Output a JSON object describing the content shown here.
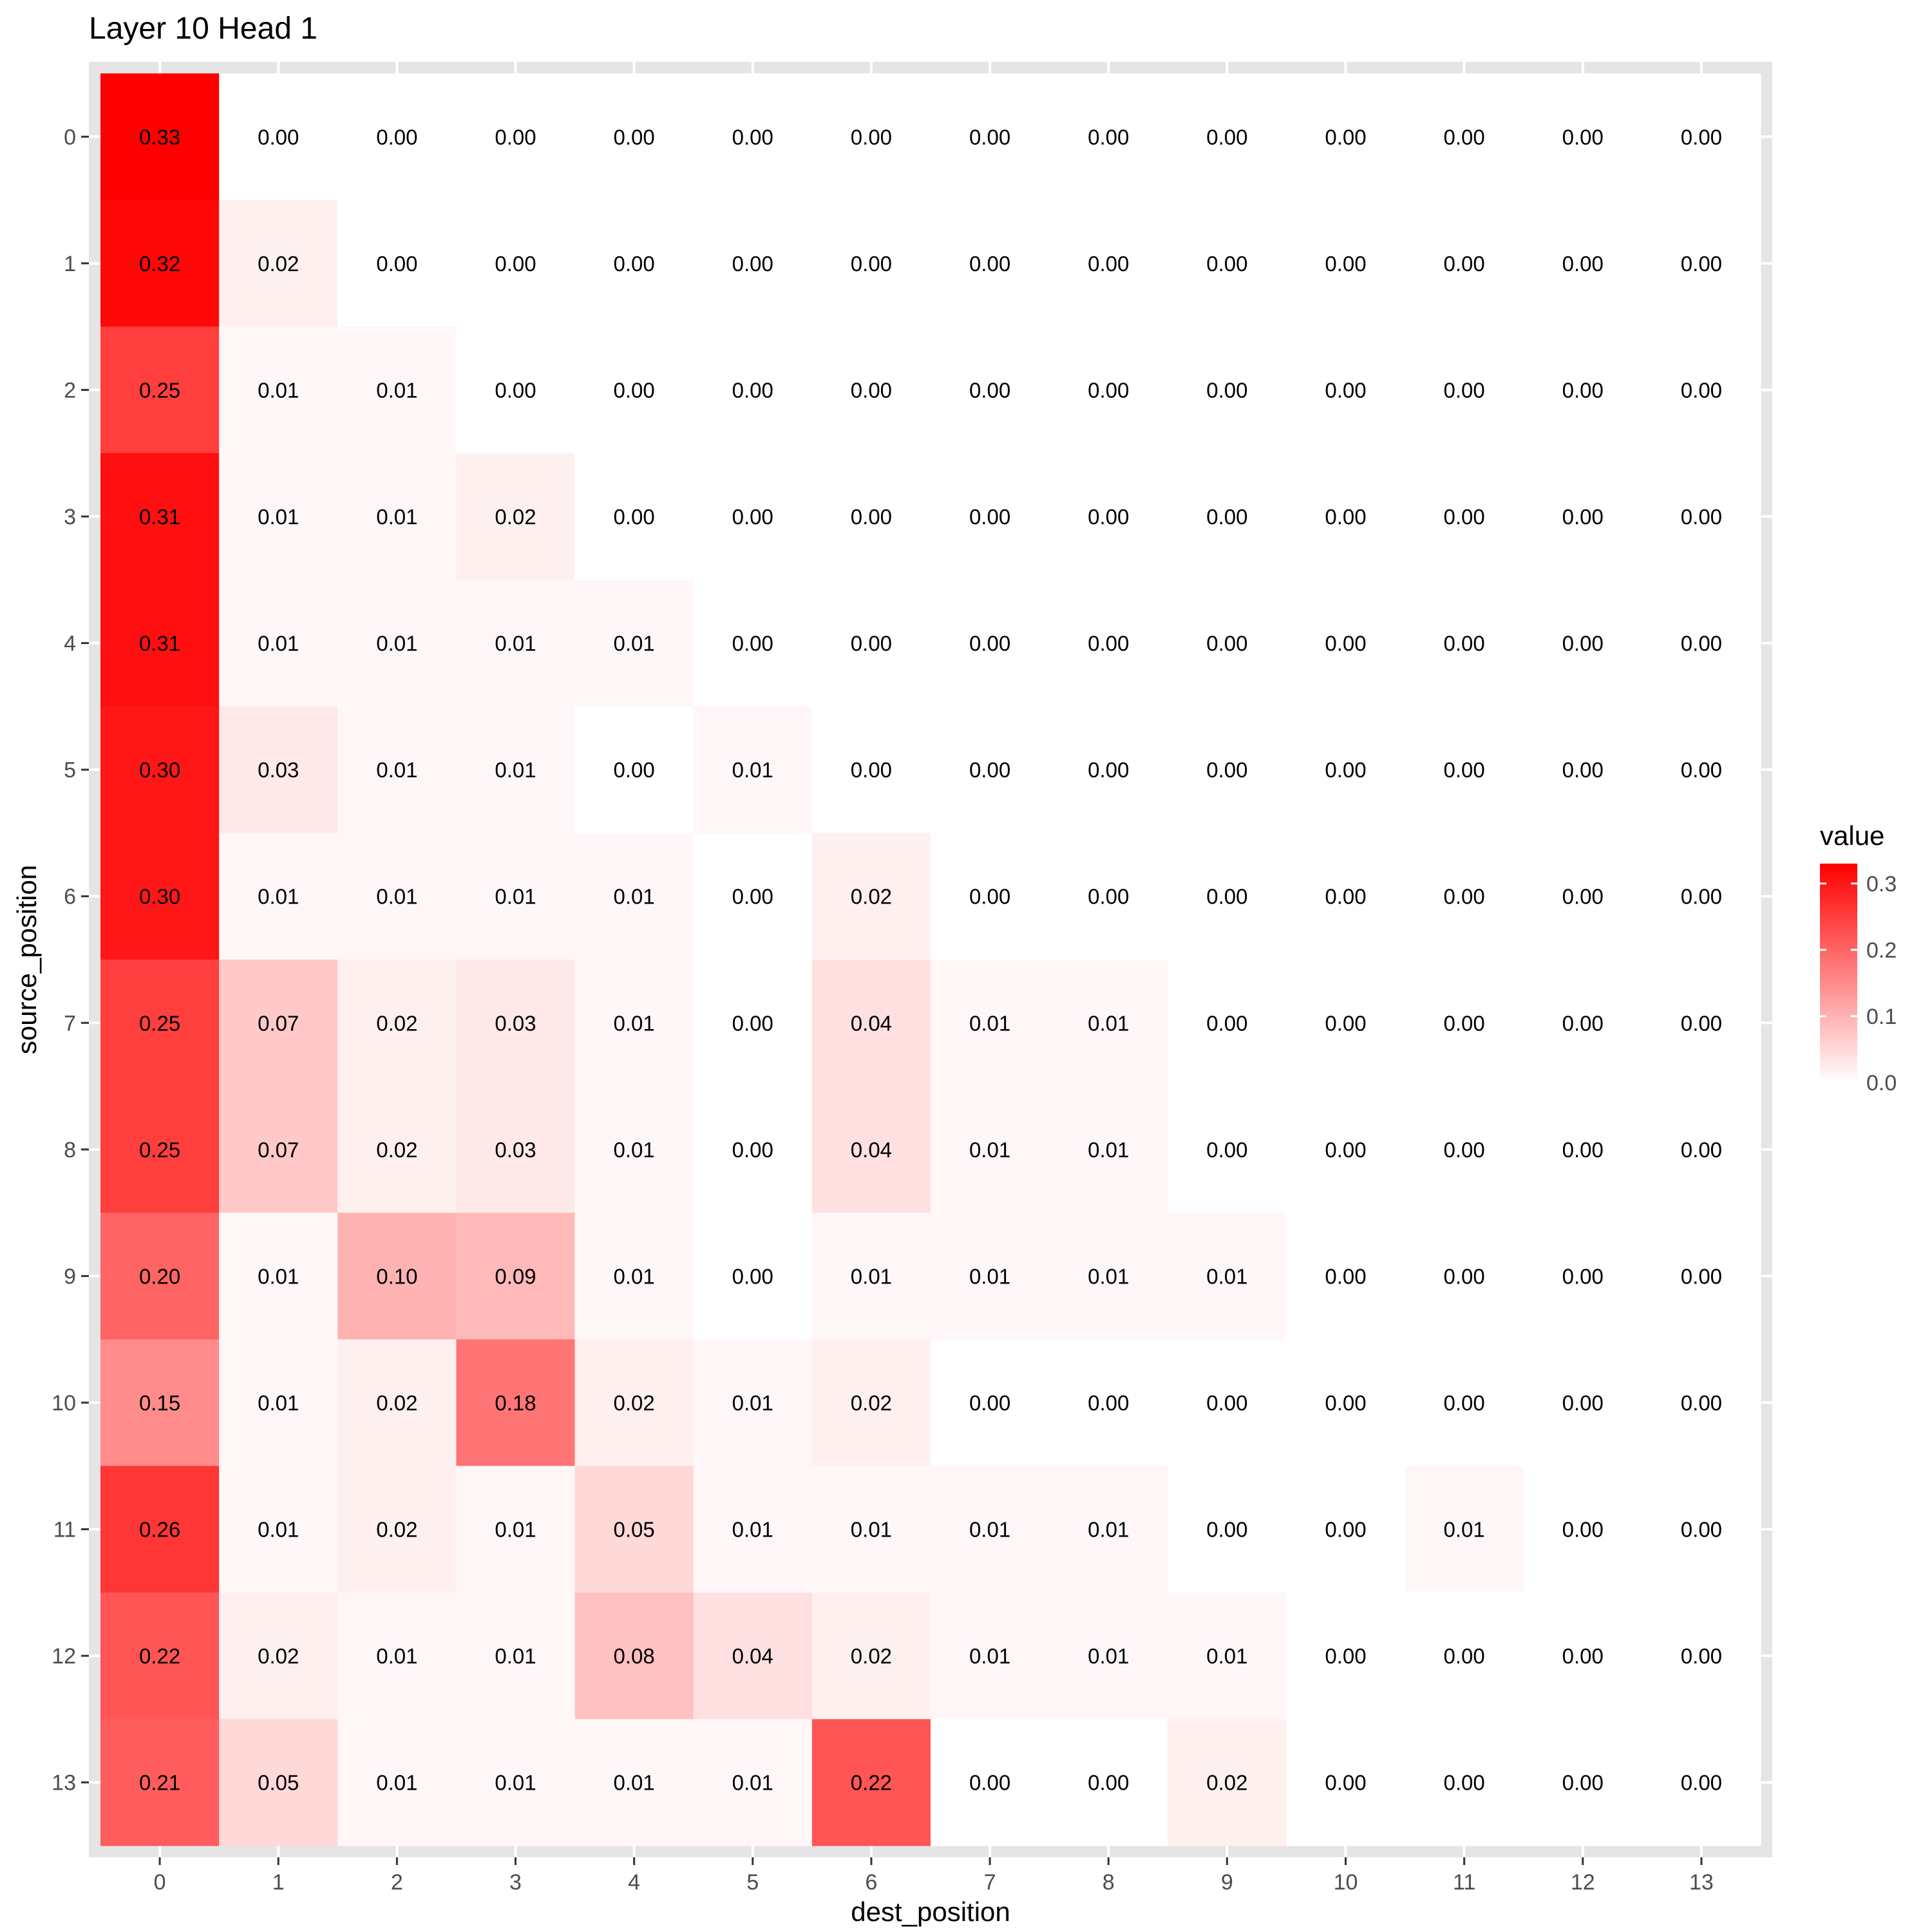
{
  "chart_data": {
    "type": "heatmap",
    "title": "Layer 10 Head 1",
    "xlabel": "dest_position",
    "ylabel": "source_position",
    "x_categories": [
      "0",
      "1",
      "2",
      "3",
      "4",
      "5",
      "6",
      "7",
      "8",
      "9",
      "10",
      "11",
      "12",
      "13"
    ],
    "y_categories": [
      "0",
      "1",
      "2",
      "3",
      "4",
      "5",
      "6",
      "7",
      "8",
      "9",
      "10",
      "11",
      "12",
      "13"
    ],
    "values": [
      [
        0.33,
        0.0,
        0.0,
        0.0,
        0.0,
        0.0,
        0.0,
        0.0,
        0.0,
        0.0,
        0.0,
        0.0,
        0.0,
        0.0
      ],
      [
        0.32,
        0.02,
        0.0,
        0.0,
        0.0,
        0.0,
        0.0,
        0.0,
        0.0,
        0.0,
        0.0,
        0.0,
        0.0,
        0.0
      ],
      [
        0.25,
        0.01,
        0.01,
        0.0,
        0.0,
        0.0,
        0.0,
        0.0,
        0.0,
        0.0,
        0.0,
        0.0,
        0.0,
        0.0
      ],
      [
        0.31,
        0.01,
        0.01,
        0.02,
        0.0,
        0.0,
        0.0,
        0.0,
        0.0,
        0.0,
        0.0,
        0.0,
        0.0,
        0.0
      ],
      [
        0.31,
        0.01,
        0.01,
        0.01,
        0.01,
        0.0,
        0.0,
        0.0,
        0.0,
        0.0,
        0.0,
        0.0,
        0.0,
        0.0
      ],
      [
        0.3,
        0.03,
        0.01,
        0.01,
        0.0,
        0.01,
        0.0,
        0.0,
        0.0,
        0.0,
        0.0,
        0.0,
        0.0,
        0.0
      ],
      [
        0.3,
        0.01,
        0.01,
        0.01,
        0.01,
        0.0,
        0.02,
        0.0,
        0.0,
        0.0,
        0.0,
        0.0,
        0.0,
        0.0
      ],
      [
        0.25,
        0.07,
        0.02,
        0.03,
        0.01,
        0.0,
        0.04,
        0.01,
        0.01,
        0.0,
        0.0,
        0.0,
        0.0,
        0.0
      ],
      [
        0.25,
        0.07,
        0.02,
        0.03,
        0.01,
        0.0,
        0.04,
        0.01,
        0.01,
        0.0,
        0.0,
        0.0,
        0.0,
        0.0
      ],
      [
        0.2,
        0.01,
        0.1,
        0.09,
        0.01,
        0.0,
        0.01,
        0.01,
        0.01,
        0.01,
        0.0,
        0.0,
        0.0,
        0.0
      ],
      [
        0.15,
        0.01,
        0.02,
        0.18,
        0.02,
        0.01,
        0.02,
        0.0,
        0.0,
        0.0,
        0.0,
        0.0,
        0.0,
        0.0
      ],
      [
        0.26,
        0.01,
        0.02,
        0.01,
        0.05,
        0.01,
        0.01,
        0.01,
        0.01,
        0.0,
        0.0,
        0.01,
        0.0,
        0.0
      ],
      [
        0.22,
        0.02,
        0.01,
        0.01,
        0.08,
        0.04,
        0.02,
        0.01,
        0.01,
        0.01,
        0.0,
        0.0,
        0.0,
        0.0
      ],
      [
        0.21,
        0.05,
        0.01,
        0.01,
        0.01,
        0.01,
        0.22,
        0.0,
        0.0,
        0.02,
        0.0,
        0.0,
        0.0,
        0.0
      ]
    ],
    "color_scale": {
      "low": "#ffffff",
      "high": "#ff0000",
      "min": 0.0,
      "max": 0.33
    },
    "legend": {
      "title": "value",
      "ticks": [
        0.0,
        0.1,
        0.2,
        0.3
      ],
      "tick_labels": [
        "0.0",
        "0.1",
        "0.2",
        "0.3"
      ],
      "placement": "right"
    },
    "panel_background": "#e5e5e5"
  }
}
